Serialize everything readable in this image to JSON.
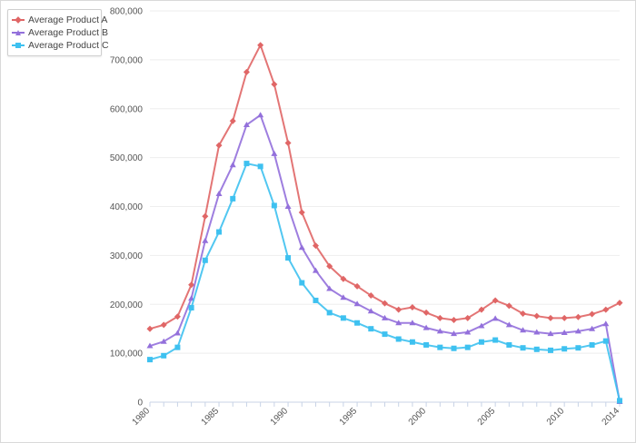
{
  "colors": {
    "A": "#e06666",
    "B": "#9370db",
    "C": "#3ec1f0",
    "grid": "#eeeeee",
    "axis": "#c8d3e6"
  },
  "chart_data": {
    "type": "line",
    "title": "",
    "xlabel": "",
    "ylabel": "",
    "legend_position": "top-left",
    "grid": true,
    "xlim": [
      1980,
      2014
    ],
    "ylim": [
      0,
      800000
    ],
    "x_ticks": [
      1980,
      1985,
      1990,
      1995,
      2000,
      2005,
      2010,
      2014
    ],
    "y_ticks": [
      0,
      100000,
      200000,
      300000,
      400000,
      500000,
      600000,
      700000,
      800000
    ],
    "y_tick_labels": [
      "0",
      "100,000",
      "200,000",
      "300,000",
      "400,000",
      "500,000",
      "600,000",
      "700,000",
      "800,000"
    ],
    "x": [
      1980,
      1981,
      1982,
      1983,
      1984,
      1985,
      1986,
      1987,
      1988,
      1989,
      1990,
      1991,
      1992,
      1993,
      1994,
      1995,
      1996,
      1997,
      1998,
      1999,
      2000,
      2001,
      2002,
      2003,
      2004,
      2005,
      2006,
      2007,
      2008,
      2009,
      2010,
      2011,
      2012,
      2013,
      2014
    ],
    "series": [
      {
        "name": "Average Product A",
        "color_key": "A",
        "marker": "diamond",
        "values": [
          150000,
          158000,
          175000,
          240000,
          380000,
          525000,
          575000,
          675000,
          730000,
          650000,
          530000,
          388000,
          320000,
          278000,
          252000,
          237000,
          218000,
          202000,
          189000,
          194000,
          183000,
          172000,
          168000,
          172000,
          189000,
          208000,
          197000,
          181000,
          176000,
          172000,
          172000,
          174000,
          180000,
          189000,
          203000
        ]
      },
      {
        "name": "Average Product B",
        "color_key": "B",
        "marker": "triangle",
        "values": [
          115000,
          124000,
          141000,
          212000,
          330000,
          426000,
          485000,
          567000,
          587000,
          508000,
          400000,
          316000,
          269000,
          232000,
          214000,
          201000,
          186000,
          172000,
          162000,
          162000,
          152000,
          145000,
          140000,
          143000,
          156000,
          171000,
          158000,
          147000,
          143000,
          140000,
          142000,
          145000,
          150000,
          160000,
          1000
        ]
      },
      {
        "name": "Average Product C",
        "color_key": "C",
        "marker": "square",
        "values": [
          87000,
          95000,
          112000,
          193000,
          290000,
          348000,
          416000,
          488000,
          482000,
          402000,
          295000,
          244000,
          208000,
          183000,
          172000,
          162000,
          150000,
          139000,
          129000,
          123000,
          117000,
          112000,
          110000,
          112000,
          123000,
          127000,
          117000,
          111000,
          108000,
          106000,
          109000,
          111000,
          117000,
          125000,
          3000
        ]
      }
    ]
  }
}
